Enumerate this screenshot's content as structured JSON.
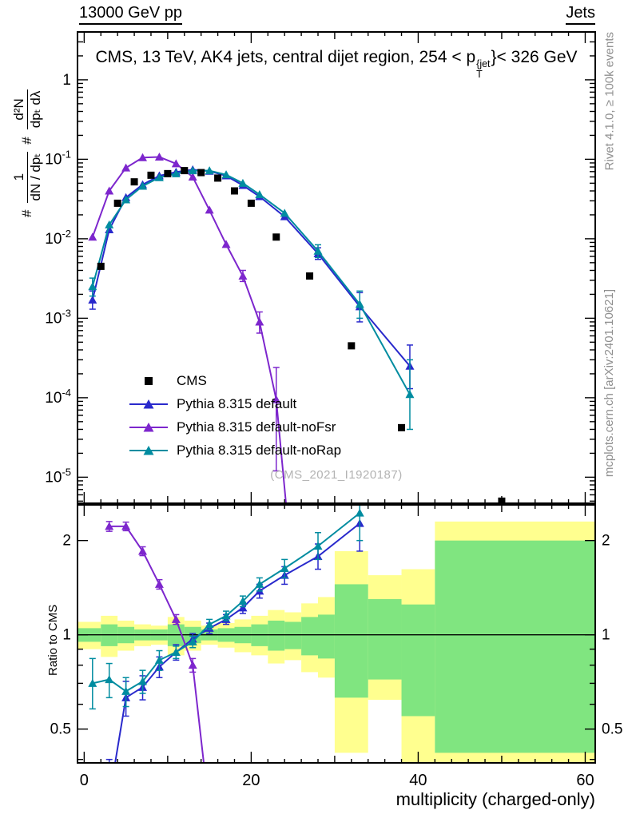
{
  "header": {
    "top_left": "13000 GeV pp",
    "top_right": "Jets",
    "title_prefix": "CMS, 13 TeV, AK4 jets, central dijet region, 254 < p",
    "title_sup": "{jet",
    "title_sub": "T",
    "title_suffix": "}< 326 GeV"
  },
  "side_labels": {
    "right_top": "Rivet 4.1.0, ≥ 100k events",
    "right_bottom": "mcplots.cern.ch [arXiv:2401.10621]",
    "watermark": "(CMS_2021_I1920187)"
  },
  "axis_labels": {
    "x": "multiplicity (charged-only)",
    "ratio_y": "Ratio to CMS",
    "top_y_hash1": "#",
    "top_y_frac1_num": "1",
    "top_y_frac1_den": "dN / dpₜ",
    "top_y_hash2": "#",
    "top_y_frac2_num": "d²N",
    "top_y_frac2_den": "dpₜ dλ"
  },
  "legend": {
    "entries": [
      {
        "label": "CMS",
        "color": "#000000",
        "marker": "square",
        "line": false
      },
      {
        "label": "Pythia 8.315 default",
        "color": "#2929cc",
        "marker": "triangle",
        "line": true
      },
      {
        "label": "Pythia 8.315 default-noFsr",
        "color": "#7d26cd",
        "marker": "triangle",
        "line": true
      },
      {
        "label": "Pythia 8.315 default-noRap",
        "color": "#008ca0",
        "marker": "triangle",
        "line": true
      }
    ]
  },
  "chart_data": {
    "type": "line",
    "title": "CMS, 13 TeV, AK4 jets, central dijet region, 254 < pT{jet} < 326 GeV",
    "xlabel": "multiplicity (charged-only)",
    "ylabel": "# 1/(dN/dpT) # d2N/(dpT dlambda)",
    "ylabel_ratio": "Ratio to CMS",
    "x_range": [
      -0.8,
      61.2
    ],
    "x_major_ticks": [
      0,
      20,
      40,
      60
    ],
    "x_medium_ticks": [
      10,
      30,
      50
    ],
    "x_minor_step": 2,
    "top_panel": {
      "y_scale": "log",
      "y_range": [
        4.7e-06,
        4.0
      ],
      "y_tick_decades": [
        0,
        -1,
        -2,
        -3,
        -4,
        -5
      ],
      "series": [
        {
          "name": "CMS",
          "color": "#000000",
          "marker": "square",
          "line": false,
          "points": [
            [
              2,
              0.0045
            ],
            [
              4,
              0.028
            ],
            [
              6,
              0.052
            ],
            [
              8,
              0.063
            ],
            [
              10,
              0.066
            ],
            [
              12,
              0.072
            ],
            [
              14,
              0.068
            ],
            [
              16,
              0.058
            ],
            [
              18,
              0.04
            ],
            [
              20,
              0.028
            ],
            [
              23,
              0.0105
            ],
            [
              27,
              0.0034
            ],
            [
              32,
              0.00045
            ],
            [
              38,
              4.2e-05
            ],
            [
              50,
              5e-06
            ]
          ]
        },
        {
          "name": "Pythia 8.315 default",
          "color": "#2929cc",
          "marker": "triangle",
          "line": true,
          "points": [
            [
              1,
              0.0017,
              0.0013,
              0.0022
            ],
            [
              3,
              0.013
            ],
            [
              5,
              0.033
            ],
            [
              7,
              0.048
            ],
            [
              9,
              0.062
            ],
            [
              11,
              0.069
            ],
            [
              13,
              0.074
            ],
            [
              15,
              0.071
            ],
            [
              17,
              0.062
            ],
            [
              19,
              0.047
            ],
            [
              21,
              0.034
            ],
            [
              24,
              0.019
            ],
            [
              28,
              0.0065,
              0.0055,
              0.0077
            ],
            [
              33,
              0.0014,
              0.0009,
              0.0021
            ],
            [
              39,
              0.00025,
              0.00013,
              0.00046
            ]
          ]
        },
        {
          "name": "Pythia 8.315 default-noFsr",
          "color": "#7d26cd",
          "marker": "triangle",
          "line": true,
          "points": [
            [
              1,
              0.0105
            ],
            [
              3,
              0.04
            ],
            [
              5,
              0.078
            ],
            [
              7,
              0.105
            ],
            [
              9,
              0.107
            ],
            [
              11,
              0.088
            ],
            [
              13,
              0.06
            ],
            [
              15,
              0.023
            ],
            [
              17,
              0.0085
            ],
            [
              19,
              0.0034,
              0.0029,
              0.004
            ],
            [
              21,
              0.0009,
              0.00065,
              0.0012
            ],
            [
              23,
              9.5e-05,
              1.2e-05,
              0.00024
            ],
            [
              24.5,
              2e-06
            ]
          ]
        },
        {
          "name": "Pythia 8.315 default-noRap",
          "color": "#008ca0",
          "marker": "triangle",
          "line": true,
          "points": [
            [
              1,
              0.0025,
              0.0019,
              0.0032
            ],
            [
              3,
              0.015
            ],
            [
              5,
              0.031
            ],
            [
              7,
              0.046
            ],
            [
              9,
              0.059
            ],
            [
              11,
              0.066
            ],
            [
              13,
              0.072
            ],
            [
              15,
              0.072
            ],
            [
              17,
              0.064
            ],
            [
              19,
              0.05
            ],
            [
              21,
              0.036
            ],
            [
              24,
              0.021
            ],
            [
              28,
              0.007,
              0.0058,
              0.0084
            ],
            [
              33,
              0.0015,
              0.001,
              0.0022
            ],
            [
              39,
              0.00011,
              4e-05,
              0.0003
            ]
          ]
        }
      ]
    },
    "ratio_panel": {
      "y_scale": "log",
      "y_range": [
        0.39,
        2.6
      ],
      "y_major_ticks": [
        0.5,
        1,
        2
      ],
      "y_minor_ticks": [
        0.4,
        0.6,
        0.7,
        0.8,
        0.9
      ],
      "reference_line": 1,
      "bands": {
        "outer_color": "#ffff8f",
        "inner_color": "#80e580",
        "outer": [
          [
            -0.8,
            2,
            0.9,
            1.1
          ],
          [
            2,
            4,
            0.85,
            1.15
          ],
          [
            4,
            6,
            0.89,
            1.11
          ],
          [
            6,
            8,
            0.92,
            1.08
          ],
          [
            8,
            10,
            0.93,
            1.07
          ],
          [
            10,
            12,
            0.86,
            1.14
          ],
          [
            12,
            14,
            0.89,
            1.11
          ],
          [
            14,
            16,
            0.93,
            1.07
          ],
          [
            16,
            18,
            0.91,
            1.09
          ],
          [
            18,
            20,
            0.88,
            1.12
          ],
          [
            20,
            22,
            0.86,
            1.15
          ],
          [
            22,
            24,
            0.81,
            1.2
          ],
          [
            24,
            26,
            0.83,
            1.18
          ],
          [
            26,
            28,
            0.76,
            1.26
          ],
          [
            28,
            30,
            0.73,
            1.32
          ],
          [
            30,
            34,
            0.42,
            1.85
          ],
          [
            34,
            38,
            0.62,
            1.55
          ],
          [
            38,
            42,
            0.39,
            1.62
          ],
          [
            42,
            61.2,
            0.39,
            2.3
          ]
        ],
        "inner": [
          [
            -0.8,
            2,
            0.95,
            1.05
          ],
          [
            2,
            4,
            0.92,
            1.08
          ],
          [
            4,
            6,
            0.94,
            1.06
          ],
          [
            6,
            8,
            0.96,
            1.04
          ],
          [
            8,
            10,
            0.96,
            1.04
          ],
          [
            10,
            12,
            0.92,
            1.08
          ],
          [
            12,
            14,
            0.94,
            1.06
          ],
          [
            14,
            16,
            0.96,
            1.04
          ],
          [
            16,
            18,
            0.95,
            1.05
          ],
          [
            18,
            20,
            0.94,
            1.06
          ],
          [
            20,
            22,
            0.92,
            1.08
          ],
          [
            22,
            24,
            0.89,
            1.11
          ],
          [
            24,
            26,
            0.9,
            1.1
          ],
          [
            26,
            28,
            0.86,
            1.14
          ],
          [
            28,
            30,
            0.84,
            1.16
          ],
          [
            30,
            34,
            0.63,
            1.45
          ],
          [
            34,
            38,
            0.72,
            1.3
          ],
          [
            38,
            42,
            0.55,
            1.25
          ],
          [
            42,
            61.2,
            0.42,
            2.0
          ]
        ]
      },
      "series": [
        {
          "name": "Pythia 8.315 default",
          "color": "#2929cc",
          "marker": "triangle",
          "line": true,
          "points": [
            [
              3,
              0.3,
              0.22,
              0.4
            ],
            [
              5,
              0.63,
              0.55,
              0.71
            ],
            [
              7,
              0.68,
              0.62,
              0.74
            ],
            [
              9,
              0.79,
              0.73,
              0.85
            ],
            [
              11,
              0.88,
              0.83,
              0.93
            ],
            [
              13,
              0.97,
              0.93,
              1.01
            ],
            [
              15,
              1.05,
              1.01,
              1.09
            ],
            [
              17,
              1.12,
              1.08,
              1.16
            ],
            [
              19,
              1.22,
              1.17,
              1.27
            ],
            [
              21,
              1.38,
              1.31,
              1.45
            ],
            [
              24,
              1.55,
              1.45,
              1.65
            ],
            [
              28,
              1.78,
              1.62,
              1.95
            ],
            [
              33,
              2.27,
              1.85,
              2.75
            ]
          ]
        },
        {
          "name": "Pythia 8.315 default-noFsr",
          "color": "#7d26cd",
          "marker": "triangle",
          "line": true,
          "points": [
            [
              3,
              2.22,
              2.14,
              2.3
            ],
            [
              5,
              2.22,
              2.15,
              2.29
            ],
            [
              7,
              1.85,
              1.79,
              1.91
            ],
            [
              9,
              1.45,
              1.4,
              1.5
            ],
            [
              11,
              1.12,
              1.08,
              1.16
            ],
            [
              13,
              0.8,
              0.76,
              0.84
            ],
            [
              15,
              0.27,
              0.23,
              0.32
            ]
          ]
        },
        {
          "name": "Pythia 8.315 default-noRap",
          "color": "#008ca0",
          "marker": "triangle",
          "line": true,
          "points": [
            [
              1,
              0.7,
              0.58,
              0.84
            ],
            [
              3,
              0.72,
              0.63,
              0.81
            ],
            [
              5,
              0.66,
              0.59,
              0.73
            ],
            [
              7,
              0.71,
              0.65,
              0.77
            ],
            [
              9,
              0.83,
              0.77,
              0.89
            ],
            [
              11,
              0.88,
              0.84,
              0.92
            ],
            [
              13,
              0.95,
              0.91,
              0.99
            ],
            [
              15,
              1.08,
              1.04,
              1.12
            ],
            [
              17,
              1.15,
              1.11,
              1.19
            ],
            [
              19,
              1.28,
              1.23,
              1.33
            ],
            [
              21,
              1.45,
              1.38,
              1.52
            ],
            [
              24,
              1.63,
              1.52,
              1.74
            ],
            [
              28,
              1.92,
              1.74,
              2.12
            ],
            [
              33,
              2.45,
              2.0,
              2.95
            ]
          ]
        }
      ]
    }
  }
}
